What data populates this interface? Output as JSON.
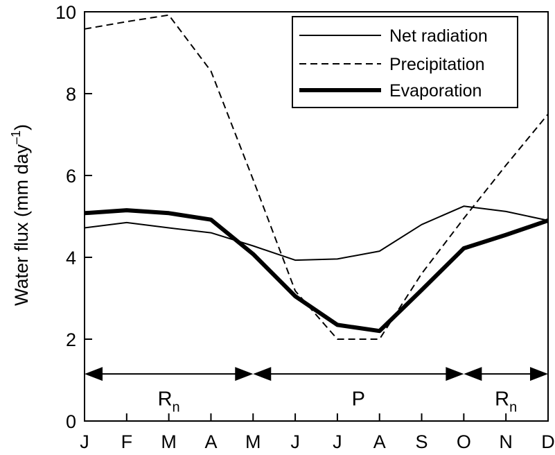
{
  "chart_data": {
    "type": "line",
    "ylabel": "Water flux (mm day",
    "ylabel_superscript": "–1",
    "ylabel_close": ")",
    "ylim": [
      0,
      10
    ],
    "yticks": [
      "0",
      "2",
      "4",
      "6",
      "8",
      "10"
    ],
    "categories": [
      "J",
      "F",
      "M",
      "A",
      "M",
      "J",
      "J",
      "A",
      "S",
      "O",
      "N",
      "D"
    ],
    "series": [
      {
        "name": "Net radiation",
        "style": "thin-solid",
        "values": [
          4.72,
          4.85,
          4.72,
          4.6,
          4.28,
          3.93,
          3.96,
          4.15,
          4.8,
          5.25,
          5.12,
          4.9
        ]
      },
      {
        "name": "Precipitation",
        "style": "dashed",
        "values": [
          9.58,
          9.76,
          9.92,
          8.55,
          5.9,
          3.18,
          2.0,
          2.0,
          3.6,
          4.95,
          6.25,
          7.5
        ]
      },
      {
        "name": "Evaporation",
        "style": "thick-solid",
        "values": [
          5.08,
          5.15,
          5.08,
          4.92,
          4.08,
          3.05,
          2.35,
          2.2,
          3.2,
          4.22,
          4.55,
          4.9
        ]
      }
    ],
    "legend_position": "top-right",
    "periods": [
      {
        "label": "R",
        "subscript": "n",
        "start": 0,
        "end": 4
      },
      {
        "label": "P",
        "subscript": "",
        "start": 4,
        "end": 9
      },
      {
        "label": "R",
        "subscript": "n",
        "start": 9,
        "end": 11
      }
    ],
    "periods_y": 1.15,
    "periods_label_y": 0.55
  }
}
